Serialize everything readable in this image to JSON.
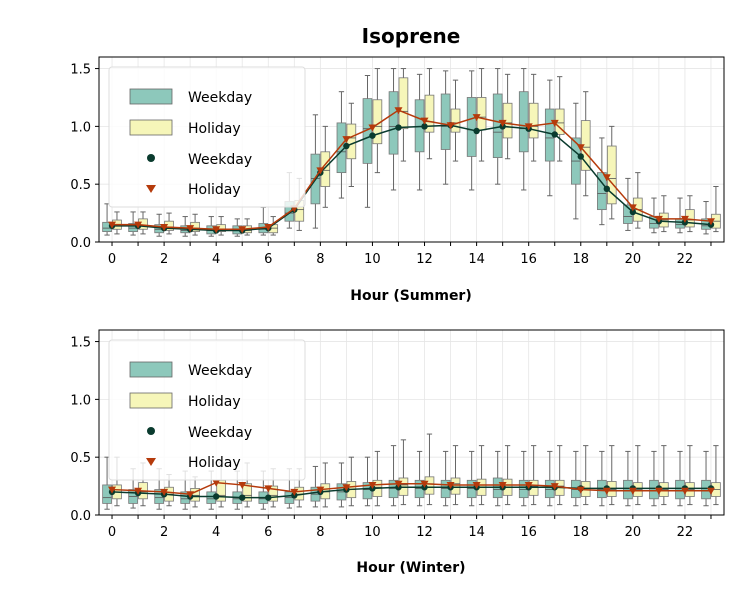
{
  "title": "Isoprene",
  "colors": {
    "weekday_box": "#8dc8bb",
    "holiday_box": "#f6f6b9",
    "weekday_line": "#0a3b2e",
    "holiday_line": "#b53a0b",
    "whisker": "#666666",
    "grid": "#e6e6e6"
  },
  "chart_data": [
    {
      "type": "box",
      "xlabel": "Hour (Summer)",
      "ylim": [
        0,
        1.6
      ],
      "xlim": [
        -0.5,
        23.5
      ],
      "yticks": [
        "0.0",
        "0.5",
        "1.0",
        "1.5"
      ],
      "xticks": [
        "0",
        "2",
        "4",
        "6",
        "8",
        "10",
        "12",
        "14",
        "16",
        "18",
        "20",
        "22"
      ],
      "grid": true,
      "legend_position": "upper-left",
      "legend": [
        "Weekday",
        "Holiday",
        "Weekday",
        "Holiday"
      ],
      "series": [
        {
          "name": "Weekday",
          "box": [
            [
              0.06,
              0.09,
              0.12,
              0.17,
              0.33
            ],
            [
              0.06,
              0.09,
              0.12,
              0.16,
              0.26
            ],
            [
              0.05,
              0.08,
              0.11,
              0.15,
              0.24
            ],
            [
              0.05,
              0.08,
              0.1,
              0.14,
              0.22
            ],
            [
              0.05,
              0.07,
              0.1,
              0.14,
              0.22
            ],
            [
              0.05,
              0.07,
              0.1,
              0.14,
              0.2
            ],
            [
              0.06,
              0.08,
              0.11,
              0.16,
              0.3
            ],
            [
              0.12,
              0.18,
              0.25,
              0.35,
              0.6
            ],
            [
              0.12,
              0.33,
              0.55,
              0.76,
              1.1
            ],
            [
              0.38,
              0.6,
              0.78,
              1.03,
              1.3
            ],
            [
              0.3,
              0.68,
              0.98,
              1.24,
              1.44
            ],
            [
              0.45,
              0.76,
              1.0,
              1.3,
              1.5
            ],
            [
              0.45,
              0.78,
              1.0,
              1.23,
              1.45
            ],
            [
              0.5,
              0.8,
              1.0,
              1.28,
              1.48
            ],
            [
              0.45,
              0.74,
              0.97,
              1.25,
              1.48
            ],
            [
              0.5,
              0.73,
              0.95,
              1.28,
              1.5
            ],
            [
              0.45,
              0.78,
              0.98,
              1.3,
              1.5
            ],
            [
              0.4,
              0.7,
              0.9,
              1.15,
              1.4
            ],
            [
              0.2,
              0.5,
              0.7,
              0.9,
              1.2
            ],
            [
              0.15,
              0.28,
              0.42,
              0.6,
              0.9
            ],
            [
              0.1,
              0.16,
              0.22,
              0.32,
              0.55
            ],
            [
              0.08,
              0.12,
              0.16,
              0.22,
              0.38
            ],
            [
              0.08,
              0.12,
              0.15,
              0.2,
              0.38
            ],
            [
              0.07,
              0.11,
              0.14,
              0.2,
              0.35
            ]
          ],
          "mean": [
            0.14,
            0.14,
            0.12,
            0.11,
            0.1,
            0.1,
            0.12,
            0.28,
            0.6,
            0.83,
            0.92,
            0.99,
            1.0,
            1.01,
            0.96,
            1.0,
            0.98,
            0.93,
            0.74,
            0.46,
            0.26,
            0.18,
            0.17,
            0.15
          ]
        },
        {
          "name": "Holiday",
          "box": [
            [
              0.07,
              0.11,
              0.14,
              0.19,
              0.26
            ],
            [
              0.07,
              0.11,
              0.14,
              0.2,
              0.26
            ],
            [
              0.07,
              0.1,
              0.13,
              0.18,
              0.25
            ],
            [
              0.06,
              0.09,
              0.12,
              0.17,
              0.24
            ],
            [
              0.06,
              0.09,
              0.11,
              0.15,
              0.22
            ],
            [
              0.06,
              0.08,
              0.1,
              0.14,
              0.2
            ],
            [
              0.06,
              0.08,
              0.12,
              0.15,
              0.22
            ],
            [
              0.1,
              0.18,
              0.28,
              0.36,
              0.55
            ],
            [
              0.3,
              0.48,
              0.62,
              0.78,
              1.0
            ],
            [
              0.48,
              0.72,
              0.9,
              1.02,
              1.2
            ],
            [
              0.6,
              0.85,
              1.0,
              1.23,
              1.5
            ],
            [
              0.7,
              0.98,
              1.13,
              1.42,
              1.5
            ],
            [
              0.72,
              0.95,
              1.04,
              1.27,
              1.5
            ],
            [
              0.7,
              0.95,
              1.03,
              1.15,
              1.4
            ],
            [
              0.7,
              0.97,
              1.08,
              1.25,
              1.5
            ],
            [
              0.72,
              0.9,
              1.03,
              1.2,
              1.45
            ],
            [
              0.7,
              0.9,
              1.0,
              1.2,
              1.45
            ],
            [
              0.7,
              0.93,
              1.03,
              1.15,
              1.43
            ],
            [
              0.4,
              0.62,
              0.82,
              1.05,
              1.3
            ],
            [
              0.2,
              0.33,
              0.55,
              0.83,
              1.0
            ],
            [
              0.12,
              0.18,
              0.28,
              0.38,
              0.6
            ],
            [
              0.09,
              0.13,
              0.19,
              0.25,
              0.4
            ],
            [
              0.09,
              0.13,
              0.19,
              0.28,
              0.4
            ],
            [
              0.09,
              0.12,
              0.18,
              0.24,
              0.48
            ]
          ],
          "mean": [
            0.15,
            0.15,
            0.13,
            0.12,
            0.11,
            0.11,
            0.13,
            0.29,
            0.62,
            0.89,
            0.99,
            1.14,
            1.05,
            1.01,
            1.08,
            1.03,
            1.0,
            1.03,
            0.82,
            0.56,
            0.3,
            0.2,
            0.2,
            0.18
          ]
        }
      ]
    },
    {
      "type": "box",
      "xlabel": "Hour (Winter)",
      "ylim": [
        0,
        1.6
      ],
      "xlim": [
        -0.5,
        23.5
      ],
      "yticks": [
        "0.0",
        "0.5",
        "1.0",
        "1.5"
      ],
      "xticks": [
        "0",
        "2",
        "4",
        "6",
        "8",
        "10",
        "12",
        "14",
        "16",
        "18",
        "20",
        "22"
      ],
      "grid": true,
      "legend_position": "upper-left",
      "legend": [
        "Weekday",
        "Holiday",
        "Weekday",
        "Holiday"
      ],
      "series": [
        {
          "name": "Weekday",
          "box": [
            [
              0.05,
              0.1,
              0.15,
              0.26,
              0.5
            ],
            [
              0.06,
              0.1,
              0.16,
              0.22,
              0.4
            ],
            [
              0.05,
              0.1,
              0.15,
              0.22,
              0.4
            ],
            [
              0.05,
              0.1,
              0.14,
              0.2,
              0.38
            ],
            [
              0.05,
              0.1,
              0.14,
              0.2,
              0.38
            ],
            [
              0.05,
              0.1,
              0.14,
              0.2,
              0.38
            ],
            [
              0.05,
              0.1,
              0.14,
              0.2,
              0.38
            ],
            [
              0.06,
              0.1,
              0.15,
              0.2,
              0.4
            ],
            [
              0.07,
              0.12,
              0.18,
              0.24,
              0.42
            ],
            [
              0.07,
              0.13,
              0.2,
              0.27,
              0.45
            ],
            [
              0.08,
              0.14,
              0.22,
              0.28,
              0.5
            ],
            [
              0.08,
              0.15,
              0.23,
              0.3,
              0.6
            ],
            [
              0.08,
              0.15,
              0.23,
              0.3,
              0.55
            ],
            [
              0.08,
              0.15,
              0.23,
              0.3,
              0.55
            ],
            [
              0.08,
              0.15,
              0.23,
              0.3,
              0.55
            ],
            [
              0.08,
              0.15,
              0.22,
              0.32,
              0.55
            ],
            [
              0.08,
              0.15,
              0.22,
              0.3,
              0.55
            ],
            [
              0.08,
              0.15,
              0.22,
              0.3,
              0.55
            ],
            [
              0.08,
              0.15,
              0.22,
              0.3,
              0.55
            ],
            [
              0.08,
              0.15,
              0.22,
              0.3,
              0.55
            ],
            [
              0.08,
              0.14,
              0.21,
              0.3,
              0.55
            ],
            [
              0.08,
              0.14,
              0.21,
              0.3,
              0.55
            ],
            [
              0.08,
              0.14,
              0.21,
              0.3,
              0.55
            ],
            [
              0.08,
              0.14,
              0.21,
              0.3,
              0.55
            ]
          ],
          "mean": [
            0.2,
            0.19,
            0.18,
            0.16,
            0.16,
            0.15,
            0.15,
            0.17,
            0.2,
            0.22,
            0.23,
            0.24,
            0.24,
            0.24,
            0.24,
            0.24,
            0.24,
            0.24,
            0.23,
            0.23,
            0.23,
            0.23,
            0.23,
            0.23
          ]
        },
        {
          "name": "Holiday",
          "box": [
            [
              0.08,
              0.14,
              0.2,
              0.26,
              0.5
            ],
            [
              0.08,
              0.14,
              0.2,
              0.28,
              0.45
            ],
            [
              0.08,
              0.12,
              0.18,
              0.24,
              0.35
            ],
            [
              0.07,
              0.12,
              0.17,
              0.23,
              0.33
            ],
            [
              0.07,
              0.12,
              0.17,
              0.3,
              0.45
            ],
            [
              0.07,
              0.12,
              0.17,
              0.27,
              0.45
            ],
            [
              0.07,
              0.12,
              0.17,
              0.25,
              0.4
            ],
            [
              0.07,
              0.13,
              0.18,
              0.24,
              0.4
            ],
            [
              0.07,
              0.14,
              0.2,
              0.27,
              0.45
            ],
            [
              0.08,
              0.15,
              0.22,
              0.29,
              0.5
            ],
            [
              0.08,
              0.16,
              0.24,
              0.3,
              0.55
            ],
            [
              0.09,
              0.17,
              0.26,
              0.32,
              0.65
            ],
            [
              0.09,
              0.18,
              0.27,
              0.33,
              0.7
            ],
            [
              0.09,
              0.18,
              0.27,
              0.32,
              0.6
            ],
            [
              0.09,
              0.17,
              0.26,
              0.31,
              0.6
            ],
            [
              0.09,
              0.17,
              0.26,
              0.31,
              0.6
            ],
            [
              0.09,
              0.17,
              0.25,
              0.3,
              0.6
            ],
            [
              0.09,
              0.17,
              0.25,
              0.3,
              0.6
            ],
            [
              0.09,
              0.16,
              0.23,
              0.29,
              0.6
            ],
            [
              0.09,
              0.16,
              0.22,
              0.29,
              0.6
            ],
            [
              0.09,
              0.16,
              0.22,
              0.28,
              0.6
            ],
            [
              0.09,
              0.16,
              0.22,
              0.28,
              0.6
            ],
            [
              0.09,
              0.16,
              0.22,
              0.28,
              0.6
            ],
            [
              0.09,
              0.16,
              0.22,
              0.28,
              0.6
            ]
          ],
          "mean": [
            0.22,
            0.21,
            0.2,
            0.18,
            0.28,
            0.26,
            0.23,
            0.2,
            0.22,
            0.24,
            0.26,
            0.27,
            0.27,
            0.26,
            0.26,
            0.26,
            0.26,
            0.25,
            0.22,
            0.21,
            0.21,
            0.21,
            0.21,
            0.21
          ]
        }
      ]
    }
  ]
}
